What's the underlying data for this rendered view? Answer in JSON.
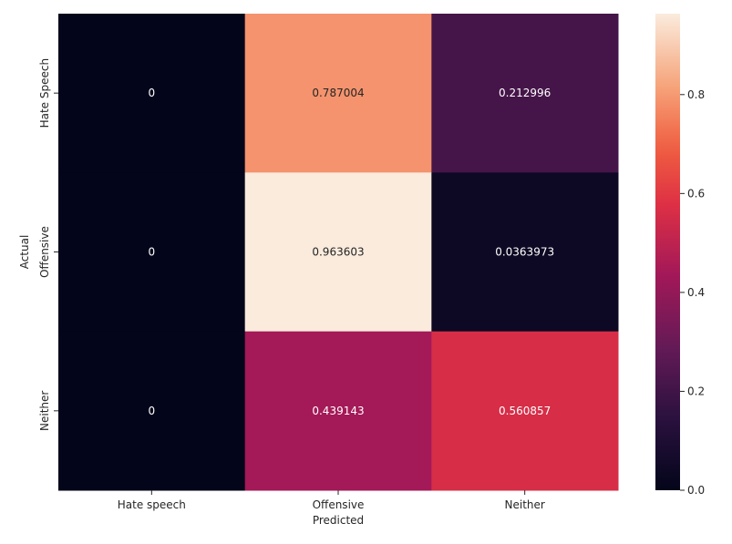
{
  "chart_data": {
    "type": "heatmap",
    "title": "",
    "xlabel": "Predicted",
    "ylabel": "Actual",
    "x_categories": [
      "Hate speech",
      "Offensive",
      "Neither"
    ],
    "y_categories": [
      "Hate Speech",
      "Offensive",
      "Neither"
    ],
    "values": [
      [
        0,
        0.787004,
        0.212996
      ],
      [
        0,
        0.963603,
        0.0363973
      ],
      [
        0,
        0.439143,
        0.560857
      ]
    ],
    "cell_labels": [
      [
        "0",
        "0.787004",
        "0.212996"
      ],
      [
        "0",
        "0.963603",
        "0.0363973"
      ],
      [
        "0",
        "0.439143",
        "0.560857"
      ]
    ],
    "colormap": "rocket",
    "colorbar": {
      "vmin": 0,
      "vmax": 0.963603,
      "ticks": [
        0.0,
        0.2,
        0.4,
        0.6,
        0.8
      ],
      "tick_labels": [
        "0.0",
        "0.2",
        "0.4",
        "0.6",
        "0.8"
      ]
    },
    "grid": false,
    "legend": "colorbar-right"
  }
}
